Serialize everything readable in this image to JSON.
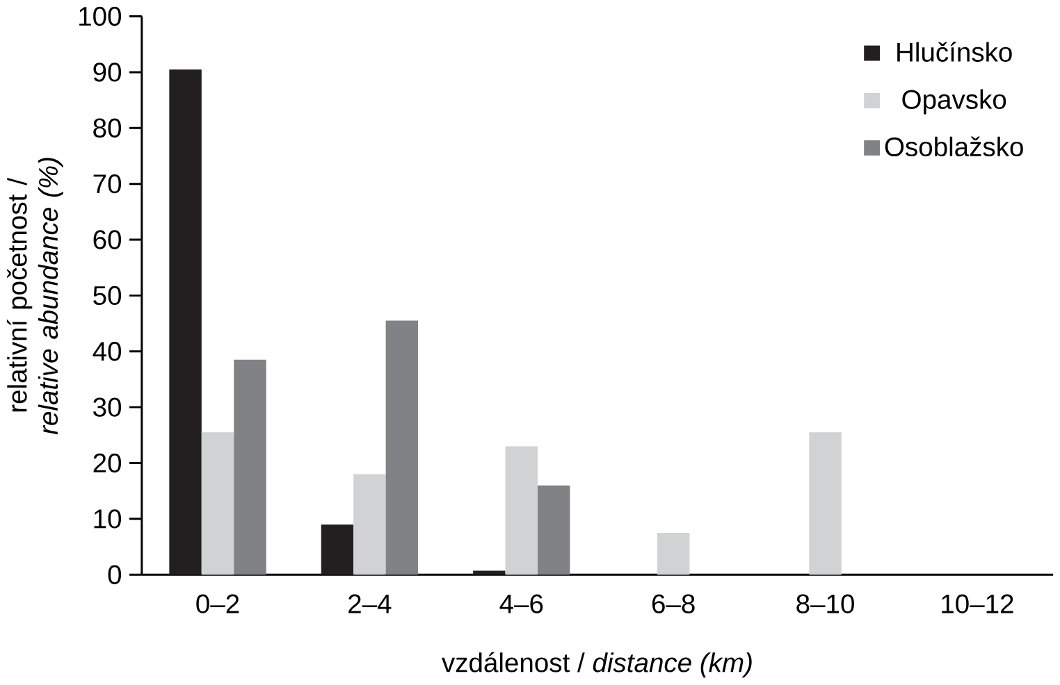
{
  "chart_data": {
    "type": "bar",
    "categories": [
      "0–2",
      "2–4",
      "4–6",
      "6–8",
      "8–10",
      "10–12"
    ],
    "series": [
      {
        "name": "Hlučínsko",
        "color": "#231f20",
        "values": [
          90.5,
          9,
          0.7,
          0,
          0,
          0
        ]
      },
      {
        "name": "Opavsko",
        "color": "#d1d2d4",
        "values": [
          25.5,
          18,
          23,
          7.5,
          25.5,
          0
        ]
      },
      {
        "name": "Osoblažsko",
        "color": "#818285",
        "values": [
          38.5,
          45.5,
          16,
          0,
          0,
          0
        ]
      }
    ],
    "xlabel": "vzdálenost / *distance (km)*",
    "ylabel": "relativní početnost / *relative abundance (%)*",
    "ylim": [
      0,
      100
    ],
    "yticks": [
      0,
      10,
      20,
      30,
      40,
      50,
      60,
      70,
      80,
      90,
      100
    ],
    "grid": false,
    "legend": "top right"
  }
}
